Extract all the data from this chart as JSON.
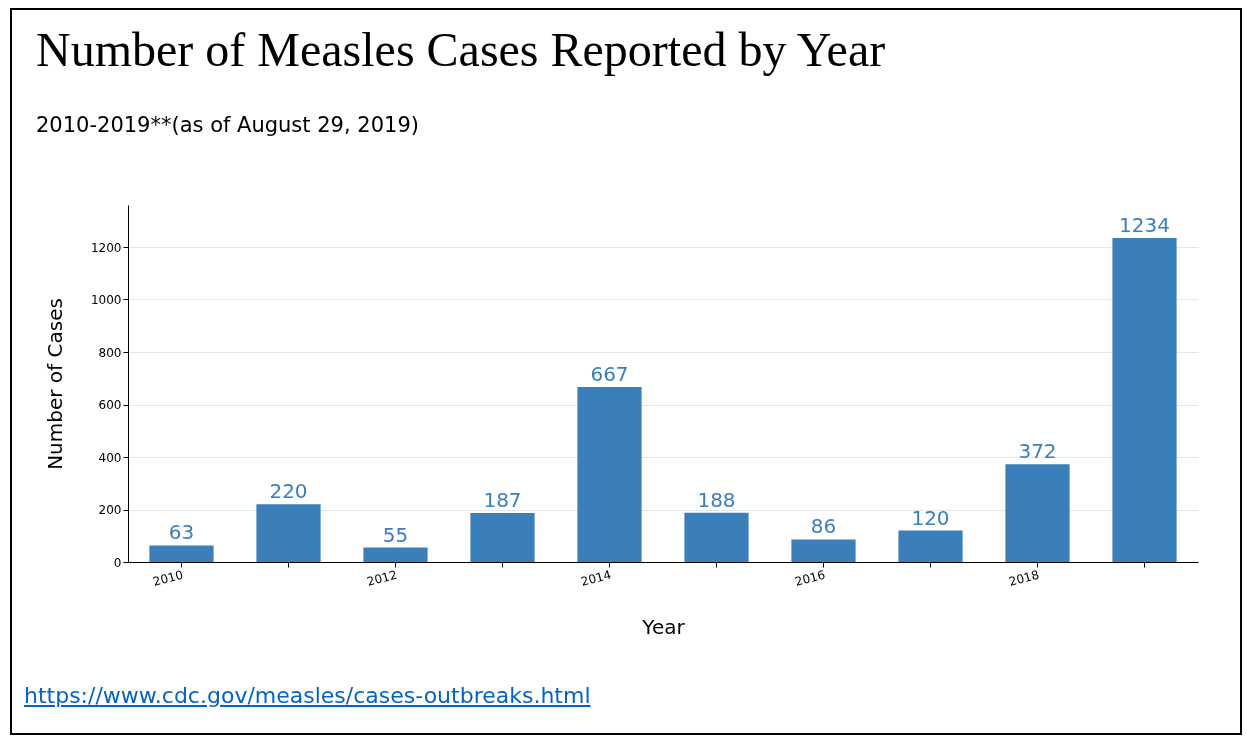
{
  "chart_data": {
    "type": "bar",
    "title": "Number of Measles Cases Reported by Year",
    "subtitle": "2010-2019**(as of August 29, 2019)",
    "xlabel": "Year",
    "ylabel": "Number of Cases",
    "categories": [
      "2010",
      null,
      "2012",
      null,
      "2014",
      null,
      "2016",
      null,
      "2018",
      null
    ],
    "values": [
      63,
      220,
      55,
      187,
      667,
      188,
      86,
      120,
      372,
      1234
    ],
    "color": "#3a7fba",
    "ylim": [
      0,
      1360
    ],
    "yticks": [
      0,
      200,
      400,
      600,
      800,
      1000,
      1200
    ],
    "grid": "y",
    "data_labels": true,
    "annotations": [
      "https://www.cdc.gov/measles/cases-outbreaks.html"
    ]
  }
}
